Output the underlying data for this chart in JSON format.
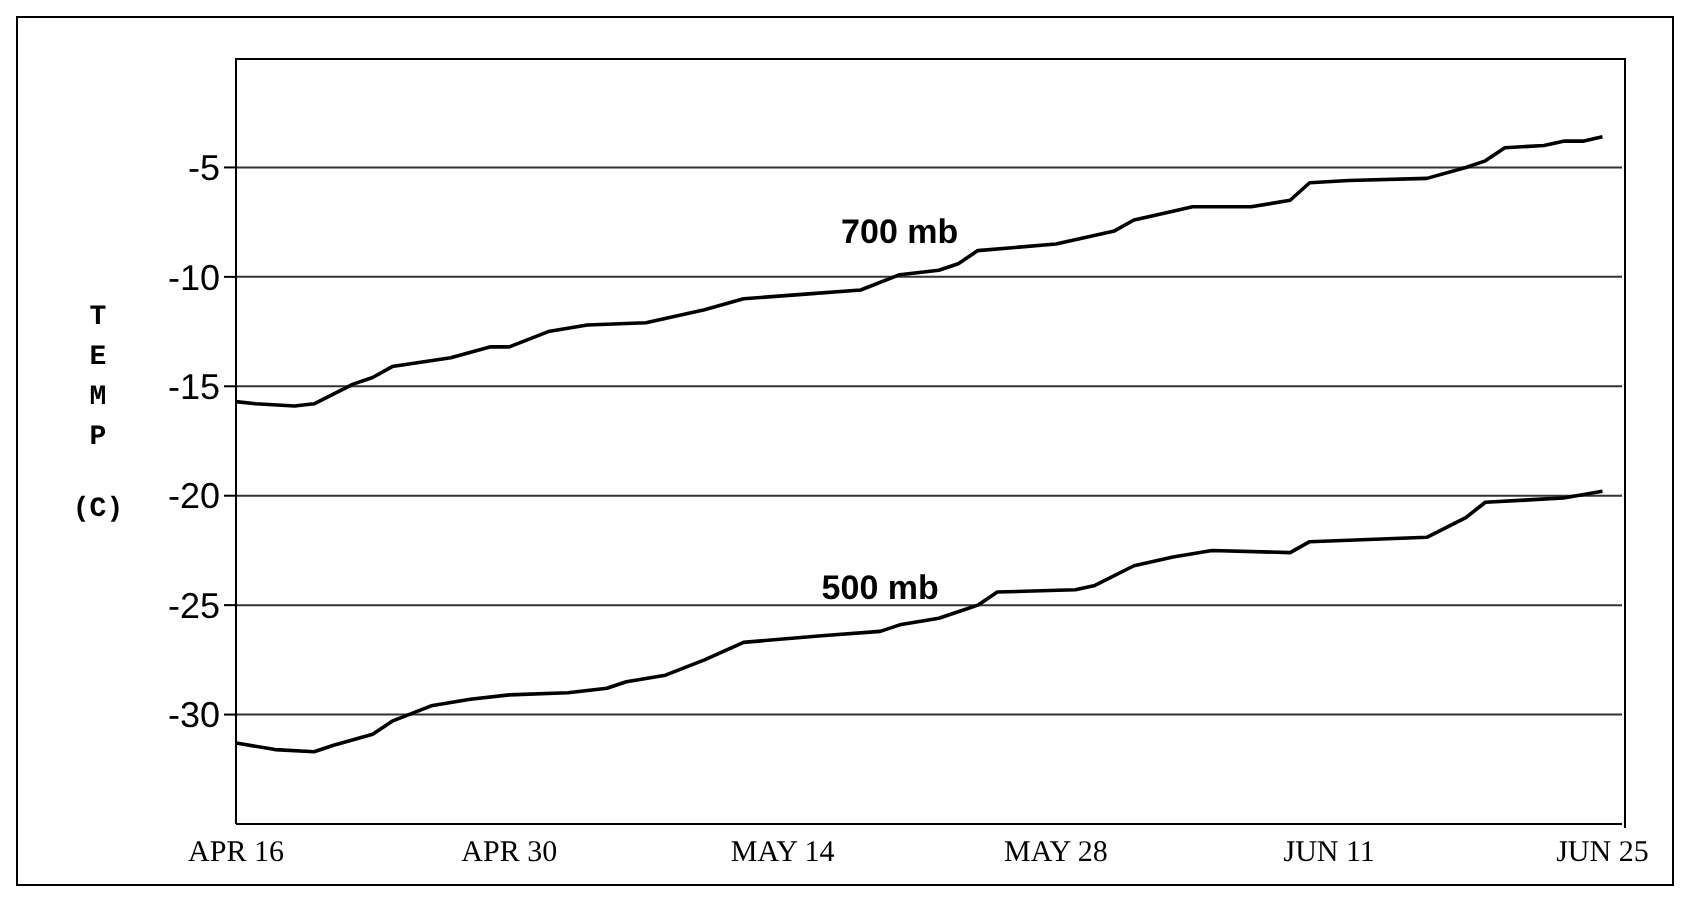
{
  "chart_data": {
    "type": "line",
    "ylabel": "TEMP (C)",
    "xlim": [
      "--04-16",
      "--06-26"
    ],
    "xticks": [
      {
        "value": "--04-16",
        "label": "APR 16"
      },
      {
        "value": "--04-30",
        "label": "APR 30"
      },
      {
        "value": "--05-14",
        "label": "MAY 14"
      },
      {
        "value": "--05-28",
        "label": "MAY 28"
      },
      {
        "value": "--06-11",
        "label": "JUN 11"
      },
      {
        "value": "--06-25",
        "label": "JUN 25"
      }
    ],
    "ylim": [
      -35,
      0
    ],
    "yticks": [
      -30,
      -25,
      -20,
      -15,
      -10,
      -5
    ],
    "grid": "y",
    "marker": "none",
    "line_style": "solid",
    "series": [
      {
        "name": "700 mb",
        "color": "#000000",
        "x": [
          "--04-16",
          "--04-17",
          "--04-19",
          "--04-20",
          "--04-22",
          "--04-23",
          "--04-24",
          "--04-27",
          "--04-29",
          "--04-30",
          "--05-02",
          "--05-04",
          "--05-07",
          "--05-10",
          "--05-12",
          "--05-15",
          "--05-18",
          "--05-20",
          "--05-22",
          "--05-23",
          "--05-24",
          "--05-28",
          "--05-31",
          "--06-01",
          "--06-03",
          "--06-04",
          "--06-07",
          "--06-09",
          "--06-10",
          "--06-12",
          "--06-16",
          "--06-18",
          "--06-19",
          "--06-20",
          "--06-22",
          "--06-23",
          "--06-24",
          "--06-25"
        ],
        "values": [
          -15.7,
          -15.8,
          -15.9,
          -15.8,
          -14.9,
          -14.6,
          -14.1,
          -13.7,
          -13.2,
          -13.2,
          -12.5,
          -12.2,
          -12.1,
          -11.5,
          -11.0,
          -10.8,
          -10.6,
          -9.9,
          -9.7,
          -9.4,
          -8.8,
          -8.5,
          -7.9,
          -7.4,
          -7.0,
          -6.8,
          -6.8,
          -6.5,
          -5.7,
          -5.6,
          -5.5,
          -5.0,
          -4.7,
          -4.1,
          -4.0,
          -3.8,
          -3.8,
          -3.6
        ]
      },
      {
        "name": "500 mb",
        "color": "#000000",
        "x": [
          "--04-16",
          "--04-18",
          "--04-20",
          "--04-21",
          "--04-23",
          "--04-24",
          "--04-26",
          "--04-28",
          "--04-30",
          "--05-03",
          "--05-05",
          "--05-06",
          "--05-08",
          "--05-10",
          "--05-12",
          "--05-16",
          "--05-19",
          "--05-20",
          "--05-22",
          "--05-23",
          "--05-24",
          "--05-25",
          "--05-29",
          "--05-30",
          "--06-01",
          "--06-03",
          "--06-05",
          "--06-09",
          "--06-10",
          "--06-16",
          "--06-18",
          "--06-19",
          "--06-21",
          "--06-23",
          "--06-25"
        ],
        "values": [
          -31.3,
          -31.6,
          -31.7,
          -31.4,
          -30.9,
          -30.3,
          -29.6,
          -29.3,
          -29.1,
          -29.0,
          -28.8,
          -28.5,
          -28.2,
          -27.5,
          -26.7,
          -26.4,
          -26.2,
          -25.9,
          -25.6,
          -25.3,
          -25.0,
          -24.4,
          -24.3,
          -24.1,
          -23.2,
          -22.8,
          -22.5,
          -22.6,
          -22.1,
          -21.9,
          -21.0,
          -20.3,
          -20.2,
          -20.1,
          -19.8
        ]
      }
    ]
  }
}
